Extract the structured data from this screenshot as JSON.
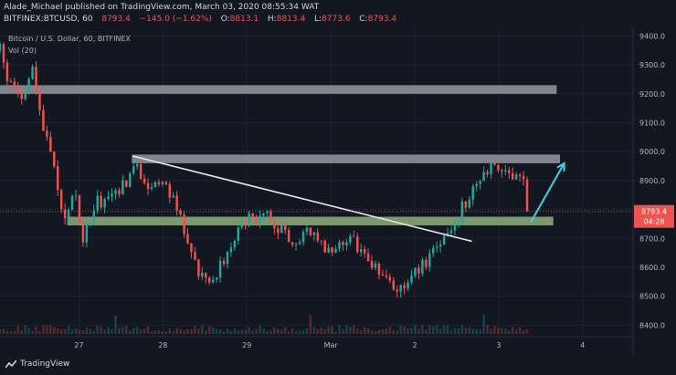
{
  "header": {
    "line1": "Alade_Michael published on TradingView.com, March 03, 2020 08:55:34 WAT",
    "symbol": "BITFINEX:BTCUSD, 60",
    "last": "8793.4",
    "change": "−145.0 (−1.62%)",
    "ohlc": {
      "o_label": "O:",
      "o": "8813.1",
      "h_label": "H:",
      "h": "8813.4",
      "l_label": "L:",
      "l": "8773.6",
      "c_label": "C:",
      "c": "8793.4"
    }
  },
  "chart_title": "Bitcoin / U.S. Dollar, 60, BITFINEX",
  "volume_label": "Vol (20)",
  "brand": "TradingView",
  "colors": {
    "background": "#131722",
    "bull": "#26a69a",
    "bear": "#ef5350",
    "resistance_zone": "#9598a1",
    "support_zone": "#8fae7e",
    "trendline": "#e6e6e6",
    "arrow": "#3fd3e0",
    "price_badge": "#ef5350"
  },
  "chart_data": {
    "type": "candlestick",
    "title": "Bitcoin / U.S. Dollar, 60, BITFINEX",
    "y_axis": {
      "ticks": [
        8400,
        8500,
        8600,
        8700,
        8800,
        8900,
        9000,
        9100,
        9200,
        9300,
        9400
      ],
      "tick_labels": [
        "8400.0",
        "8500.0",
        "8600.0",
        "8700.0",
        "8800.0",
        "8900.0",
        "9000.0",
        "9100.0",
        "9200.0",
        "9300.0",
        "9400.0"
      ],
      "range": [
        8360,
        9430
      ]
    },
    "x_axis": {
      "tick_labels": [
        "27",
        "28",
        "29",
        "Mar",
        "2",
        "3",
        "4"
      ],
      "tick_days": [
        1,
        2,
        3,
        4,
        5,
        6,
        7
      ],
      "range_days": [
        0.06,
        7.6
      ]
    },
    "last_price": {
      "value": 8793.4,
      "label": "8793.4",
      "countdown": "04:28"
    },
    "zones": [
      {
        "kind": "resistance",
        "from_day": 0.06,
        "to_day": 6.69,
        "low": 9200,
        "high": 9230
      },
      {
        "kind": "resistance",
        "from_day": 1.63,
        "to_day": 6.73,
        "low": 8960,
        "high": 8990
      },
      {
        "kind": "support",
        "from_day": 0.86,
        "to_day": 6.65,
        "low": 8745,
        "high": 8775
      }
    ],
    "trendline": {
      "start": {
        "day": 1.64,
        "price": 8985
      },
      "end": {
        "day": 5.68,
        "price": 8690
      }
    },
    "arrow": {
      "start": {
        "day": 6.38,
        "price": 8755
      },
      "end": {
        "day": 6.78,
        "price": 8960
      }
    },
    "anchors": [
      {
        "day": 0.06,
        "price": 9350
      },
      {
        "day": 0.15,
        "price": 9250
      },
      {
        "day": 0.35,
        "price": 9180
      },
      {
        "day": 0.45,
        "price": 9290
      },
      {
        "day": 0.55,
        "price": 9100
      },
      {
        "day": 0.7,
        "price": 8960
      },
      {
        "day": 0.8,
        "price": 8760
      },
      {
        "day": 0.95,
        "price": 8860
      },
      {
        "day": 1.05,
        "price": 8700
      },
      {
        "day": 1.2,
        "price": 8820
      },
      {
        "day": 1.45,
        "price": 8860
      },
      {
        "day": 1.7,
        "price": 8940
      },
      {
        "day": 1.85,
        "price": 8880
      },
      {
        "day": 2.0,
        "price": 8900
      },
      {
        "day": 2.2,
        "price": 8780
      },
      {
        "day": 2.4,
        "price": 8600
      },
      {
        "day": 2.6,
        "price": 8540
      },
      {
        "day": 2.8,
        "price": 8680
      },
      {
        "day": 3.0,
        "price": 8760
      },
      {
        "day": 3.25,
        "price": 8790
      },
      {
        "day": 3.5,
        "price": 8690
      },
      {
        "day": 3.75,
        "price": 8720
      },
      {
        "day": 4.0,
        "price": 8640
      },
      {
        "day": 4.2,
        "price": 8710
      },
      {
        "day": 4.45,
        "price": 8620
      },
      {
        "day": 4.7,
        "price": 8560
      },
      {
        "day": 4.85,
        "price": 8520
      },
      {
        "day": 5.0,
        "price": 8580
      },
      {
        "day": 5.2,
        "price": 8640
      },
      {
        "day": 5.4,
        "price": 8700
      },
      {
        "day": 5.55,
        "price": 8800
      },
      {
        "day": 5.7,
        "price": 8880
      },
      {
        "day": 5.85,
        "price": 8920
      },
      {
        "day": 6.0,
        "price": 8960
      },
      {
        "day": 6.15,
        "price": 8920
      },
      {
        "day": 6.3,
        "price": 8880
      },
      {
        "day": 6.38,
        "price": 8793
      }
    ]
  }
}
